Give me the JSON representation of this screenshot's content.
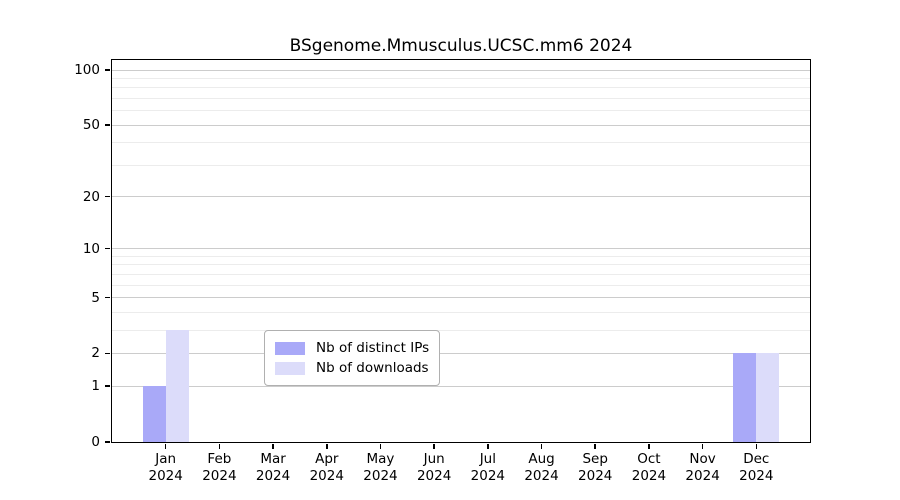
{
  "page": {
    "title": "BSgenome.Mmusculus.UCSC.mm6 2024"
  },
  "chart_data": {
    "type": "bar",
    "title": "BSgenome.Mmusculus.UCSC.mm6 2024",
    "categories": [
      "Jan",
      "Feb",
      "Mar",
      "Apr",
      "May",
      "Jun",
      "Jul",
      "Aug",
      "Sep",
      "Oct",
      "Nov",
      "Dec"
    ],
    "category_sublabel": "2024",
    "series": [
      {
        "name": "Nb of distinct IPs",
        "color": "#a9a9f8",
        "values": [
          1,
          0,
          0,
          0,
          0,
          0,
          0,
          0,
          0,
          0,
          0,
          2
        ]
      },
      {
        "name": "Nb of downloads",
        "color": "#dcdcfa",
        "values": [
          3,
          0,
          0,
          0,
          0,
          0,
          0,
          0,
          0,
          0,
          0,
          2
        ]
      }
    ],
    "yscale": "log1p",
    "ylim": [
      0,
      100
    ],
    "y_ticks": [
      0,
      1,
      2,
      5,
      10,
      20,
      50,
      100
    ],
    "y_gridlines": [
      1,
      2,
      3,
      4,
      5,
      6,
      7,
      8,
      9,
      10,
      20,
      30,
      40,
      50,
      60,
      70,
      80,
      90,
      100
    ],
    "grid": true,
    "legend_position": "bottom-center",
    "legend_entries": [
      "Nb of distinct IPs",
      "Nb of downloads"
    ]
  },
  "colors": {
    "bar_distinct_ips": "#a9a9f8",
    "bar_downloads": "#dcdcfa",
    "grid_minor": "#ececec",
    "grid_major": "#cccccc",
    "axis": "#000000",
    "legend_border": "#b0b0b0",
    "background": "#ffffff"
  }
}
